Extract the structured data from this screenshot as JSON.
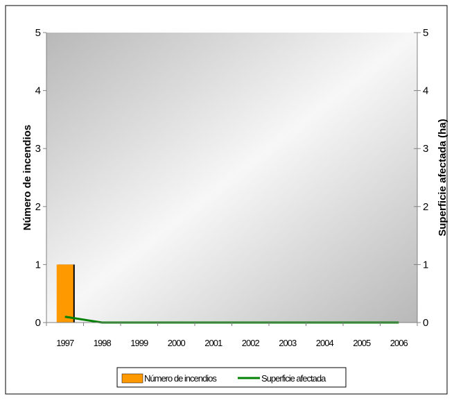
{
  "chart_data": {
    "type": "bar",
    "categories": [
      "1997",
      "1998",
      "1999",
      "2000",
      "2001",
      "2002",
      "2003",
      "2004",
      "2005",
      "2006"
    ],
    "series": [
      {
        "name": "Número de incendios",
        "kind": "bar",
        "axis": "left",
        "values": [
          1,
          0,
          0,
          0,
          0,
          0,
          0,
          0,
          0,
          0
        ]
      },
      {
        "name": "Superficie afectada",
        "kind": "line",
        "axis": "right",
        "values": [
          0.1,
          0,
          0,
          0,
          0,
          0,
          0,
          0,
          0,
          0
        ]
      }
    ],
    "ylabel": "Número de incendios",
    "y2label": "Superficie afectada (ha)",
    "ylim": [
      0,
      5
    ],
    "y2lim": [
      0,
      5
    ],
    "yticks": [
      "0",
      "1",
      "2",
      "3",
      "4",
      "5"
    ],
    "y2ticks": [
      "0",
      "1",
      "2",
      "3",
      "4",
      "5"
    ],
    "legend_placement": "bottom",
    "grid": false,
    "colors": {
      "bar": "#ff9900",
      "line": "#008000"
    }
  }
}
